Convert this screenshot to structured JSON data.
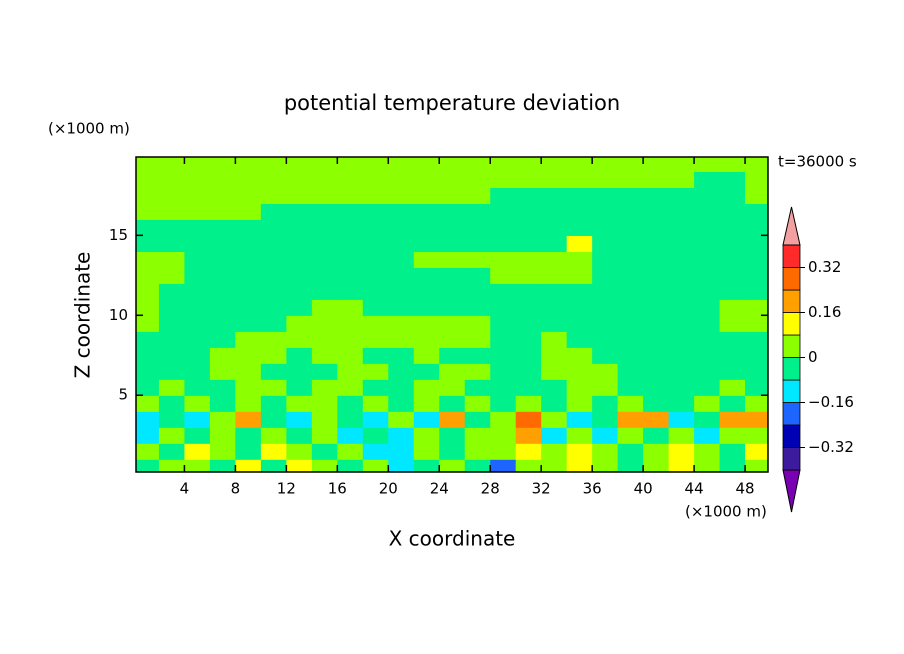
{
  "chart_data": {
    "type": "contour",
    "title": "potential temperature deviation",
    "x_label": "X coordinate",
    "y_label": "Z coordinate",
    "x_unit": "(×1000 m)",
    "y_unit": "(×1000 m)",
    "time_label": "t=36000 s",
    "xlim": [
      0.2,
      49.8
    ],
    "ylim": [
      0.2,
      19.9
    ],
    "xticks": [
      4,
      8,
      12,
      16,
      20,
      24,
      28,
      32,
      36,
      40,
      44,
      48
    ],
    "yticks": [
      5,
      10,
      15
    ],
    "x": [
      1,
      3,
      5,
      7,
      9,
      11,
      13,
      15,
      17,
      19,
      21,
      23,
      25,
      27,
      29,
      31,
      33,
      35,
      37,
      39,
      41,
      43,
      45,
      47,
      49
    ],
    "y": [
      0.5,
      1.5,
      2.5,
      3.5,
      4.5,
      5.5,
      6.5,
      7.5,
      8.5,
      9.5,
      10.5,
      11.5,
      12.5,
      13.5,
      14.5,
      15.5,
      16.5,
      17.5,
      18.5,
      19.5
    ],
    "z": [
      [
        -0.04,
        0.04,
        0.04,
        -0.04,
        0.12,
        -0.04,
        0.12,
        0.04,
        -0.04,
        0.04,
        -0.12,
        -0.04,
        0.04,
        -0.04,
        -0.2,
        0.04,
        0.04,
        0.12,
        0.04,
        -0.04,
        0.04,
        0.12,
        0.04,
        -0.04,
        0.04
      ],
      [
        0.04,
        -0.04,
        0.12,
        0.04,
        -0.04,
        0.12,
        0.04,
        -0.04,
        0.04,
        -0.12,
        -0.12,
        0.04,
        -0.04,
        0.04,
        0.04,
        0.12,
        0.04,
        0.12,
        0.04,
        -0.04,
        0.04,
        0.12,
        0.04,
        -0.04,
        0.12
      ],
      [
        -0.12,
        0.04,
        -0.04,
        0.04,
        -0.04,
        0.04,
        -0.04,
        0.04,
        -0.12,
        -0.04,
        -0.12,
        0.04,
        -0.04,
        0.04,
        0.04,
        0.2,
        -0.12,
        0.04,
        -0.12,
        0.04,
        -0.04,
        0.04,
        -0.12,
        0.04,
        0.04
      ],
      [
        -0.12,
        -0.04,
        -0.12,
        0.04,
        0.2,
        -0.04,
        -0.12,
        0.04,
        -0.04,
        -0.12,
        0.04,
        -0.12,
        0.2,
        -0.04,
        0.04,
        0.28,
        0.04,
        -0.12,
        -0.04,
        0.2,
        0.2,
        -0.12,
        -0.04,
        0.2,
        0.2
      ],
      [
        0.04,
        -0.04,
        0.04,
        -0.04,
        0.04,
        -0.04,
        0.04,
        0.04,
        -0.04,
        0.04,
        -0.04,
        0.04,
        -0.04,
        0.04,
        -0.04,
        0.04,
        -0.04,
        0.04,
        -0.04,
        0.04,
        -0.04,
        -0.04,
        0.04,
        -0.04,
        0.04
      ],
      [
        -0.04,
        0.04,
        -0.04,
        -0.04,
        0.04,
        0.04,
        -0.04,
        0.04,
        0.04,
        -0.04,
        -0.04,
        0.04,
        0.04,
        -0.04,
        -0.04,
        -0.04,
        -0.04,
        0.04,
        0.04,
        -0.04,
        -0.04,
        -0.04,
        -0.04,
        0.04,
        -0.04
      ],
      [
        -0.04,
        -0.04,
        -0.04,
        0.04,
        0.04,
        -0.04,
        -0.04,
        -0.04,
        0.04,
        0.04,
        -0.04,
        -0.04,
        0.04,
        0.04,
        -0.04,
        -0.04,
        0.04,
        0.04,
        0.04,
        -0.04,
        -0.04,
        -0.04,
        -0.04,
        -0.04,
        -0.04
      ],
      [
        -0.04,
        -0.04,
        -0.04,
        0.04,
        0.04,
        0.04,
        -0.04,
        0.04,
        0.04,
        -0.04,
        -0.04,
        0.04,
        -0.04,
        -0.04,
        -0.04,
        -0.04,
        0.04,
        0.04,
        -0.04,
        -0.04,
        -0.04,
        -0.04,
        -0.04,
        -0.04,
        -0.04
      ],
      [
        -0.04,
        -0.04,
        -0.04,
        -0.04,
        0.04,
        0.04,
        0.04,
        0.04,
        0.04,
        0.04,
        0.04,
        0.04,
        0.04,
        0.04,
        -0.04,
        -0.04,
        0.04,
        -0.04,
        -0.04,
        -0.04,
        -0.04,
        -0.04,
        -0.04,
        -0.04,
        -0.04
      ],
      [
        0.04,
        -0.04,
        -0.04,
        -0.04,
        -0.04,
        -0.04,
        0.04,
        0.04,
        0.04,
        0.04,
        0.04,
        0.04,
        0.04,
        0.04,
        -0.04,
        -0.04,
        -0.04,
        -0.04,
        -0.04,
        -0.04,
        -0.04,
        -0.04,
        -0.04,
        0.04,
        0.04
      ],
      [
        0.04,
        -0.04,
        -0.04,
        -0.04,
        -0.04,
        -0.04,
        -0.04,
        0.04,
        0.04,
        -0.04,
        -0.04,
        -0.04,
        -0.04,
        -0.04,
        -0.04,
        -0.04,
        -0.04,
        -0.04,
        -0.04,
        -0.04,
        -0.04,
        -0.04,
        -0.04,
        0.04,
        0.04
      ],
      [
        0.04,
        -0.04,
        -0.04,
        -0.04,
        -0.04,
        -0.04,
        -0.04,
        -0.04,
        -0.04,
        -0.04,
        -0.04,
        -0.04,
        -0.04,
        -0.04,
        -0.04,
        -0.04,
        -0.04,
        -0.04,
        -0.04,
        -0.04,
        -0.04,
        -0.04,
        -0.04,
        -0.04,
        -0.04
      ],
      [
        0.04,
        0.04,
        -0.04,
        -0.04,
        -0.04,
        -0.04,
        -0.04,
        -0.04,
        -0.04,
        -0.04,
        -0.04,
        -0.04,
        -0.04,
        -0.04,
        0.04,
        0.04,
        0.04,
        0.04,
        -0.04,
        -0.04,
        -0.04,
        -0.04,
        -0.04,
        -0.04,
        -0.04
      ],
      [
        0.04,
        0.04,
        -0.04,
        -0.04,
        -0.04,
        -0.04,
        -0.04,
        -0.04,
        -0.04,
        -0.04,
        -0.04,
        0.04,
        0.04,
        0.04,
        0.04,
        0.04,
        0.04,
        0.04,
        -0.04,
        -0.04,
        -0.04,
        -0.04,
        -0.04,
        -0.04,
        -0.04
      ],
      [
        -0.04,
        -0.04,
        -0.04,
        -0.04,
        -0.04,
        -0.04,
        -0.04,
        -0.04,
        -0.04,
        -0.04,
        -0.04,
        -0.04,
        -0.04,
        -0.04,
        -0.04,
        -0.04,
        -0.04,
        0.12,
        -0.04,
        -0.04,
        -0.04,
        -0.04,
        -0.04,
        -0.04,
        -0.04
      ],
      [
        -0.04,
        -0.04,
        -0.04,
        -0.04,
        -0.04,
        -0.04,
        -0.04,
        -0.04,
        -0.04,
        -0.04,
        -0.04,
        -0.04,
        -0.04,
        -0.04,
        -0.04,
        -0.04,
        -0.04,
        -0.04,
        -0.04,
        -0.04,
        -0.04,
        -0.04,
        -0.04,
        -0.04,
        -0.04
      ],
      [
        0.04,
        0.04,
        0.04,
        0.04,
        0.04,
        -0.04,
        -0.04,
        -0.04,
        -0.04,
        -0.04,
        -0.04,
        -0.04,
        -0.04,
        -0.04,
        -0.04,
        -0.04,
        -0.04,
        -0.04,
        -0.04,
        -0.04,
        -0.04,
        -0.04,
        -0.04,
        -0.04,
        -0.04
      ],
      [
        0.04,
        0.04,
        0.04,
        0.04,
        0.04,
        0.04,
        0.04,
        0.04,
        0.04,
        0.04,
        0.04,
        0.04,
        0.04,
        0.04,
        -0.04,
        -0.04,
        -0.04,
        -0.04,
        -0.04,
        -0.04,
        -0.04,
        -0.04,
        -0.04,
        -0.04,
        0.04
      ],
      [
        0.04,
        0.04,
        0.04,
        0.04,
        0.04,
        0.04,
        0.04,
        0.04,
        0.04,
        0.04,
        0.04,
        0.04,
        0.04,
        0.04,
        0.04,
        0.04,
        0.04,
        0.04,
        0.04,
        0.04,
        0.04,
        0.04,
        -0.04,
        -0.04,
        0.04
      ],
      [
        0.04,
        0.04,
        0.04,
        0.04,
        0.04,
        0.04,
        0.04,
        0.04,
        0.04,
        0.04,
        0.04,
        0.04,
        0.04,
        0.04,
        0.04,
        0.04,
        0.04,
        0.04,
        0.04,
        0.04,
        0.04,
        0.04,
        0.04,
        0.04,
        0.04
      ]
    ],
    "levels": [
      -0.4,
      -0.32,
      -0.24,
      -0.16,
      -0.08,
      0,
      0.08,
      0.16,
      0.24,
      0.32,
      0.4
    ],
    "colors": [
      "#7a00b4",
      "#3c1c9c",
      "#0000b4",
      "#1e64ff",
      "#00e8ff",
      "#00f08c",
      "#8cff00",
      "#ffff00",
      "#ffa000",
      "#ff6a00",
      "#ff2a2a",
      "#f4a0a0"
    ],
    "colorbar_ticks": [
      {
        "value": -0.32,
        "label": "−0.32"
      },
      {
        "value": -0.16,
        "label": "−0.16"
      },
      0,
      0.16,
      0.32
    ]
  }
}
